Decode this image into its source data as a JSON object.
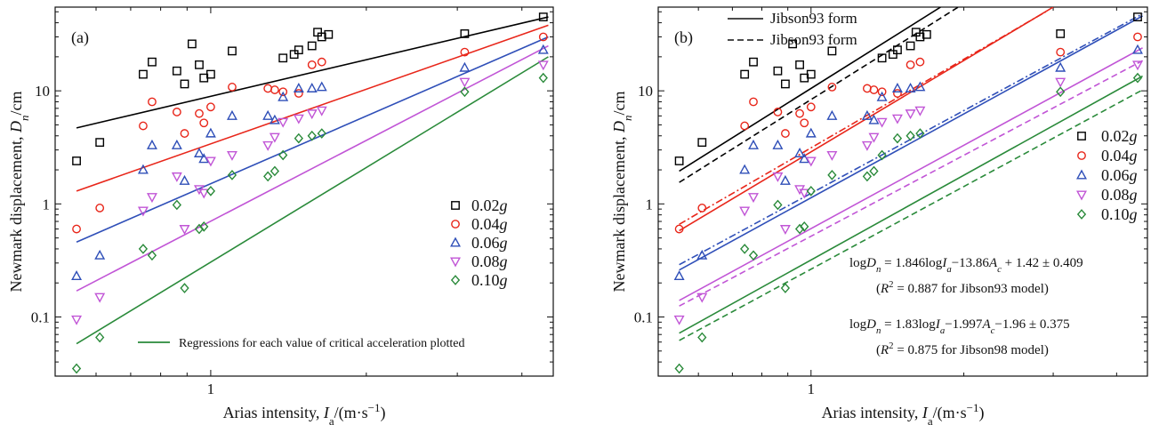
{
  "figure": {
    "xlabel": "Arias intensity, ",
    "xlabel_var": "I",
    "xlabel_sub": "a",
    "xlabel_unit": "/(m·s",
    "xlabel_exp": "−1",
    "xlabel_close": ")",
    "ylabel": "Newmark displacement, ",
    "ylabel_var": "D",
    "ylabel_sub": "n",
    "ylabel_unit": "/cm"
  },
  "colors": {
    "0.02g": "#000000",
    "0.04g": "#e8261a",
    "0.06g": "#2f4fb8",
    "0.08g": "#c155d6",
    "0.10g": "#2a8a3a"
  },
  "chart_data": [
    {
      "type": "scatter",
      "panel_label": "(a)",
      "x_scale": "log",
      "y_scale": "log",
      "xlim": [
        0.5,
        4.6
      ],
      "ylim": [
        0.03,
        55
      ],
      "x_ticks": [
        1
      ],
      "y_ticks": [
        0.1,
        1,
        10
      ],
      "legend_position": "right",
      "regression_note": "Regressions for each value of critical acceleration plotted",
      "series": [
        {
          "name": "0.02g",
          "marker": "square",
          "color": "#000000",
          "x": [
            0.55,
            0.61,
            0.74,
            0.77,
            0.86,
            0.89,
            1.38,
            0.95,
            0.97,
            0.92,
            1.0,
            1.1,
            1.45,
            1.48,
            1.57,
            1.64,
            1.61,
            1.69,
            3.1,
            4.4
          ],
          "y": [
            2.4,
            3.5,
            14.0,
            18.0,
            15.0,
            11.5,
            19.5,
            17.0,
            13.0,
            26.0,
            14.0,
            22.5,
            21.0,
            23.0,
            25.0,
            30.0,
            33.0,
            31.5,
            32.0,
            45.0
          ],
          "line": [
            [
              0.55,
              4.7
            ],
            [
              4.5,
              45.0
            ]
          ]
        },
        {
          "name": "0.04g",
          "marker": "circle",
          "color": "#e8261a",
          "x": [
            0.55,
            0.61,
            0.74,
            0.77,
            0.86,
            0.89,
            0.95,
            0.97,
            1.0,
            1.1,
            1.29,
            1.33,
            1.38,
            1.48,
            1.57,
            1.64,
            3.1,
            4.4
          ],
          "y": [
            0.6,
            0.92,
            4.9,
            8.0,
            6.5,
            4.2,
            6.3,
            5.2,
            7.2,
            10.8,
            10.5,
            10.2,
            9.8,
            9.5,
            17.0,
            18.0,
            22.0,
            30.0
          ],
          "line": [
            [
              0.55,
              1.3
            ],
            [
              4.5,
              38.0
            ]
          ]
        },
        {
          "name": "0.06g",
          "marker": "triangle-up",
          "color": "#2f4fb8",
          "x": [
            0.55,
            0.61,
            0.74,
            0.77,
            0.86,
            0.89,
            0.95,
            0.97,
            1.0,
            1.1,
            1.29,
            1.33,
            1.38,
            1.48,
            1.57,
            1.64,
            3.1,
            4.4
          ],
          "y": [
            0.23,
            0.35,
            2.0,
            3.3,
            3.3,
            1.6,
            2.8,
            2.5,
            4.2,
            6.0,
            6.0,
            5.5,
            8.8,
            10.5,
            10.5,
            10.8,
            16.0,
            23.0
          ],
          "line": [
            [
              0.55,
              0.46
            ],
            [
              4.5,
              30.0
            ]
          ]
        },
        {
          "name": "0.08g",
          "marker": "triangle-down",
          "color": "#c155d6",
          "x": [
            0.55,
            0.61,
            0.74,
            0.77,
            0.86,
            0.89,
            0.95,
            0.97,
            1.0,
            1.1,
            1.29,
            1.33,
            1.38,
            1.48,
            1.57,
            1.64,
            3.1,
            4.4
          ],
          "y": [
            0.095,
            0.15,
            0.87,
            1.15,
            1.75,
            0.6,
            1.35,
            1.25,
            2.4,
            2.7,
            3.3,
            3.9,
            5.3,
            5.7,
            6.3,
            6.7,
            12.0,
            17.0
          ],
          "line": [
            [
              0.55,
              0.17
            ],
            [
              4.5,
              25.0
            ]
          ]
        },
        {
          "name": "0.10g",
          "marker": "diamond",
          "color": "#2a8a3a",
          "x": [
            0.55,
            0.61,
            0.74,
            0.77,
            0.86,
            0.89,
            0.95,
            0.97,
            1.0,
            1.1,
            1.29,
            1.33,
            1.38,
            1.48,
            1.57,
            1.64,
            3.1,
            4.4
          ],
          "y": [
            0.035,
            0.066,
            0.4,
            0.35,
            0.98,
            0.18,
            0.6,
            0.63,
            1.3,
            1.8,
            1.75,
            1.95,
            2.7,
            3.8,
            4.0,
            4.2,
            9.8,
            13.0
          ],
          "line": [
            [
              0.55,
              0.058
            ],
            [
              4.5,
              20.0
            ]
          ]
        }
      ]
    },
    {
      "type": "scatter",
      "panel_label": "(b)",
      "x_scale": "log",
      "y_scale": "log",
      "xlim": [
        0.5,
        4.6
      ],
      "ylim": [
        0.03,
        55
      ],
      "x_ticks": [
        1
      ],
      "y_ticks": [
        0.1,
        1,
        10
      ],
      "legend_lines": [
        {
          "style": "solid",
          "label": "Jibson93 form"
        },
        {
          "style": "dashed",
          "label": "Jibson93 form"
        }
      ],
      "legend_position": "right",
      "annotations": [
        {
          "text": "logDn = 1.846logIa−13.86Ac + 1.42 ± 0.409",
          "r2": "(R² = 0.887 for Jibson93 model)"
        },
        {
          "text": "logDn = 1.83logIa−1.997Ac−1.96 ± 0.375",
          "r2": "(R² = 0.875 for Jibson98 model)"
        }
      ],
      "series": [
        {
          "name": "0.02g",
          "marker": "square",
          "color": "#000000",
          "x": [
            0.55,
            0.61,
            0.74,
            0.77,
            0.86,
            0.89,
            1.38,
            0.95,
            0.97,
            0.92,
            1.0,
            1.1,
            1.45,
            1.48,
            1.57,
            1.64,
            1.61,
            1.69,
            3.1,
            4.4
          ],
          "y": [
            2.4,
            3.5,
            14.0,
            18.0,
            15.0,
            11.5,
            19.5,
            17.0,
            13.0,
            26.0,
            14.0,
            22.5,
            21.0,
            23.0,
            25.0,
            30.0,
            33.0,
            31.5,
            32.0,
            45.0
          ],
          "solid": [
            [
              0.55,
              1.95
            ],
            [
              1.8,
              55.0
            ]
          ],
          "dashed": [
            [
              0.55,
              1.55
            ],
            [
              1.95,
              55.0
            ]
          ]
        },
        {
          "name": "0.04g",
          "marker": "circle",
          "color": "#e8261a",
          "x": [
            0.55,
            0.61,
            0.74,
            0.77,
            0.86,
            0.89,
            0.95,
            0.97,
            1.0,
            1.1,
            1.29,
            1.33,
            1.38,
            1.48,
            1.57,
            1.64,
            3.1,
            4.4
          ],
          "y": [
            0.6,
            0.92,
            4.9,
            8.0,
            6.5,
            4.2,
            6.3,
            5.2,
            7.2,
            10.8,
            10.5,
            10.2,
            9.8,
            9.5,
            17.0,
            18.0,
            22.0,
            30.0
          ],
          "solid": [
            [
              0.55,
              0.58
            ],
            [
              3.0,
              55.0
            ]
          ],
          "dashdot": [
            [
              0.55,
              0.66
            ],
            [
              2.9,
              50.0
            ]
          ]
        },
        {
          "name": "0.06g",
          "marker": "triangle-up",
          "color": "#2f4fb8",
          "x": [
            0.55,
            0.61,
            0.74,
            0.77,
            0.86,
            0.89,
            0.95,
            0.97,
            1.0,
            1.1,
            1.29,
            1.33,
            1.38,
            1.48,
            1.57,
            1.64,
            3.1,
            4.4
          ],
          "y": [
            0.23,
            0.35,
            2.0,
            3.3,
            3.3,
            1.6,
            2.8,
            2.5,
            4.2,
            6.0,
            6.0,
            5.5,
            8.8,
            10.5,
            10.5,
            10.8,
            16.0,
            23.0
          ],
          "solid": [
            [
              0.55,
              0.26
            ],
            [
              4.5,
              46.0
            ]
          ],
          "dashdot": [
            [
              0.55,
              0.29
            ],
            [
              4.5,
              48.0
            ]
          ]
        },
        {
          "name": "0.08g",
          "marker": "triangle-down",
          "color": "#c155d6",
          "x": [
            0.55,
            0.61,
            0.74,
            0.77,
            0.86,
            0.89,
            0.95,
            0.97,
            1.0,
            1.1,
            1.29,
            1.33,
            1.38,
            1.48,
            1.57,
            1.64,
            3.1,
            4.4
          ],
          "y": [
            0.095,
            0.15,
            0.87,
            1.15,
            1.75,
            0.6,
            1.35,
            1.25,
            2.4,
            2.7,
            3.3,
            3.9,
            5.3,
            5.7,
            6.3,
            6.7,
            12.0,
            17.0
          ],
          "solid": [
            [
              0.55,
              0.14
            ],
            [
              4.5,
              24.0
            ]
          ],
          "dashed": [
            [
              0.55,
              0.125
            ],
            [
              4.5,
              18.5
            ]
          ]
        },
        {
          "name": "0.10g",
          "marker": "diamond",
          "color": "#2a8a3a",
          "x": [
            0.55,
            0.61,
            0.74,
            0.77,
            0.86,
            0.89,
            0.95,
            0.97,
            1.0,
            1.1,
            1.29,
            1.33,
            1.38,
            1.48,
            1.57,
            1.64,
            3.1,
            4.4
          ],
          "y": [
            0.035,
            0.066,
            0.4,
            0.35,
            0.98,
            0.18,
            0.6,
            0.63,
            1.3,
            1.8,
            1.75,
            1.95,
            2.7,
            3.8,
            4.0,
            4.2,
            9.8,
            13.0
          ],
          "solid": [
            [
              0.55,
              0.072
            ],
            [
              4.5,
              13.5
            ]
          ],
          "dashed": [
            [
              0.55,
              0.062
            ],
            [
              4.5,
              10.2
            ]
          ]
        }
      ]
    }
  ]
}
